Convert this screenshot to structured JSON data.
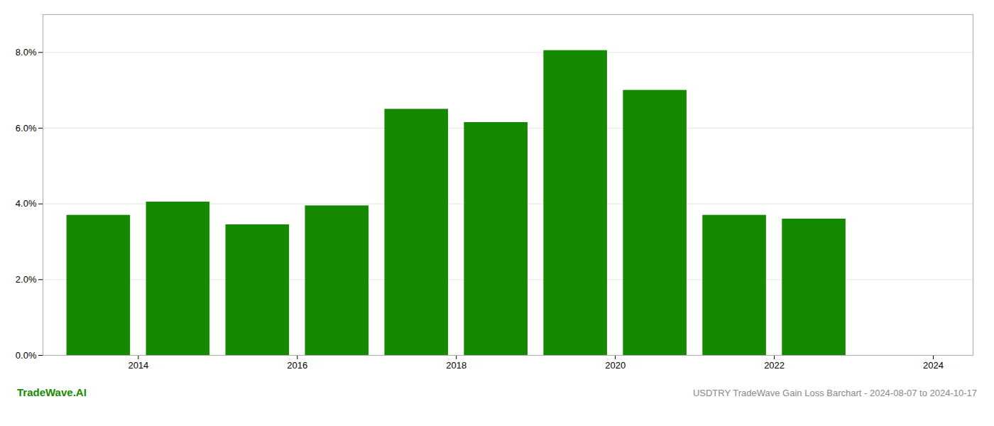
{
  "chart_data": {
    "type": "bar",
    "title": "USDTRY TradeWave Gain Loss Barchart - 2024-08-07 to 2024-10-17",
    "annotations": [
      "TradeWave.AI"
    ],
    "x": [
      2013.5,
      2014.5,
      2015.5,
      2016.5,
      2017.5,
      2018.5,
      2019.5,
      2020.5,
      2021.5,
      2022.5
    ],
    "values": [
      0.037,
      0.0405,
      0.0345,
      0.0395,
      0.065,
      0.0615,
      0.0805,
      0.07,
      0.037,
      0.036
    ],
    "color": "#158a00",
    "xlim": [
      2012.8,
      2024.5
    ],
    "xticks": [
      2014,
      2016,
      2018,
      2020,
      2022,
      2024
    ],
    "ylim": [
      0,
      0.09
    ],
    "yticks": [
      {
        "value": 0.0,
        "label": "0.0%"
      },
      {
        "value": 0.02,
        "label": "2.0%"
      },
      {
        "value": 0.04,
        "label": "4.0%"
      },
      {
        "value": 0.06,
        "label": "6.0%"
      },
      {
        "value": 0.08,
        "label": "8.0%"
      }
    ],
    "grid": true
  }
}
